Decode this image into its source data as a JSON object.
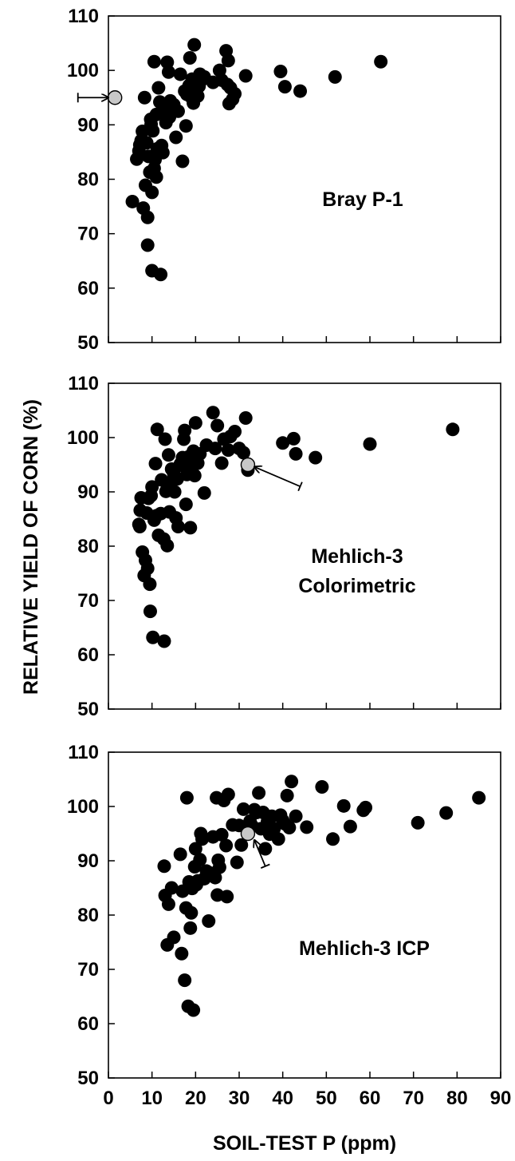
{
  "figure": {
    "ylabel": "RELATIVE YIELD OF CORN (%)",
    "xlabel": "SOIL-TEST P (ppm)"
  },
  "chart_data": [
    {
      "type": "scatter",
      "panel_label": [
        "Bray P-1"
      ],
      "xlim": [
        0,
        90
      ],
      "ylim": [
        50,
        110
      ],
      "yticks": [
        50,
        60,
        70,
        80,
        90,
        100,
        110
      ],
      "x_tick_labels_shown": false,
      "point_color": "#000000",
      "highlight_color": "#c8c8c8",
      "highlight": {
        "x": 1.5,
        "y": 95
      },
      "arrow": {
        "from": [
          -7,
          95
        ],
        "to": [
          0,
          95
        ]
      },
      "points": [
        [
          5.5,
          75.9
        ],
        [
          6.5,
          83.7
        ],
        [
          7,
          85.2
        ],
        [
          7.2,
          86.3
        ],
        [
          7.5,
          87.1
        ],
        [
          7.8,
          88.8
        ],
        [
          8,
          74.7
        ],
        [
          8.3,
          95
        ],
        [
          8.5,
          78.9
        ],
        [
          8.8,
          86.7
        ],
        [
          9,
          73
        ],
        [
          9,
          67.9
        ],
        [
          9.2,
          84.2
        ],
        [
          9.5,
          81.3
        ],
        [
          9.7,
          91
        ],
        [
          9.8,
          90.1
        ],
        [
          10,
          63.2
        ],
        [
          10,
          77.6
        ],
        [
          10.2,
          88.9
        ],
        [
          10.5,
          82
        ],
        [
          10.5,
          101.6
        ],
        [
          10.7,
          83.6
        ],
        [
          11,
          80.4
        ],
        [
          11,
          91.9
        ],
        [
          11.2,
          85.6
        ],
        [
          11.5,
          96.8
        ],
        [
          11.8,
          94.2
        ],
        [
          12,
          62.5
        ],
        [
          12.2,
          86.2
        ],
        [
          12.5,
          84.9
        ],
        [
          12.7,
          92.2
        ],
        [
          13,
          93.1
        ],
        [
          13.2,
          90.4
        ],
        [
          13.5,
          101.5
        ],
        [
          13.8,
          99.7
        ],
        [
          14,
          91.4
        ],
        [
          14.2,
          94.4
        ],
        [
          14.5,
          92.6
        ],
        [
          15,
          93.7
        ],
        [
          15.5,
          87.7
        ],
        [
          16,
          92.5
        ],
        [
          16.5,
          99.3
        ],
        [
          17,
          83.3
        ],
        [
          17.5,
          96.2
        ],
        [
          17.8,
          89.8
        ],
        [
          18,
          95.6
        ],
        [
          18.5,
          97.2
        ],
        [
          18.7,
          102.3
        ],
        [
          19,
          95.1
        ],
        [
          19.2,
          98.4
        ],
        [
          19.5,
          94
        ],
        [
          19.7,
          104.7
        ],
        [
          20,
          96.5
        ],
        [
          20.5,
          95.3
        ],
        [
          20.8,
          97.1
        ],
        [
          21,
          99.3
        ],
        [
          21.5,
          98.3
        ],
        [
          22,
          98.8
        ],
        [
          24,
          97.8
        ],
        [
          25.5,
          100
        ],
        [
          26,
          98.2
        ],
        [
          27,
          103.6
        ],
        [
          27.3,
          97.4
        ],
        [
          27.5,
          101.8
        ],
        [
          27.7,
          93.9
        ],
        [
          28,
          96.8
        ],
        [
          28.5,
          94.7
        ],
        [
          29,
          95.7
        ],
        [
          31.5,
          99
        ],
        [
          39.5,
          99.8
        ],
        [
          40.5,
          97
        ],
        [
          44,
          96.2
        ],
        [
          52,
          98.8
        ],
        [
          62.5,
          101.6
        ]
      ]
    },
    {
      "type": "scatter",
      "panel_label": [
        "Mehlich-3",
        "Colorimetric"
      ],
      "xlim": [
        0,
        90
      ],
      "ylim": [
        50,
        110
      ],
      "yticks": [
        50,
        60,
        70,
        80,
        90,
        100,
        110
      ],
      "x_tick_labels_shown": false,
      "point_color": "#000000",
      "highlight_color": "#c8c8c8",
      "highlight": {
        "x": 32,
        "y": 95
      },
      "arrow": {
        "from": [
          44,
          91
        ],
        "to": [
          33.5,
          94.6
        ]
      },
      "points": [
        [
          7,
          84
        ],
        [
          7.2,
          83.6
        ],
        [
          7.3,
          86.6
        ],
        [
          7.5,
          88.9
        ],
        [
          7.8,
          78.9
        ],
        [
          8.2,
          74.6
        ],
        [
          8.5,
          77.4
        ],
        [
          8.8,
          86.1
        ],
        [
          9,
          75.9
        ],
        [
          9.2,
          88.8
        ],
        [
          9.5,
          73
        ],
        [
          9.6,
          68
        ],
        [
          9.8,
          89.3
        ],
        [
          10,
          90.9
        ],
        [
          10.2,
          63.2
        ],
        [
          10.5,
          84.8
        ],
        [
          10.8,
          95.2
        ],
        [
          11,
          85.6
        ],
        [
          11.2,
          101.5
        ],
        [
          11.5,
          82
        ],
        [
          12,
          86
        ],
        [
          12.2,
          92.2
        ],
        [
          12.7,
          81.3
        ],
        [
          12.8,
          62.5
        ],
        [
          13,
          99.7
        ],
        [
          13.2,
          90.1
        ],
        [
          13.5,
          80.1
        ],
        [
          13.8,
          96.8
        ],
        [
          14,
          86.3
        ],
        [
          14.3,
          91.7
        ],
        [
          14.5,
          94.2
        ],
        [
          15,
          93.3
        ],
        [
          15.2,
          90
        ],
        [
          15.5,
          85.2
        ],
        [
          15.8,
          92.4
        ],
        [
          16,
          83.6
        ],
        [
          16.5,
          95.1
        ],
        [
          16.8,
          94.9
        ],
        [
          17,
          96.3
        ],
        [
          17.3,
          99.7
        ],
        [
          17.5,
          101.3
        ],
        [
          17.8,
          87.7
        ],
        [
          18,
          93.2
        ],
        [
          18.5,
          96.5
        ],
        [
          18.8,
          83.4
        ],
        [
          19,
          96.4
        ],
        [
          19.2,
          94.9
        ],
        [
          19.5,
          97.5
        ],
        [
          19.8,
          93
        ],
        [
          20,
          102.7
        ],
        [
          20.5,
          95.3
        ],
        [
          21,
          97
        ],
        [
          22,
          89.8
        ],
        [
          22.5,
          98.6
        ],
        [
          24,
          104.6
        ],
        [
          24.5,
          98
        ],
        [
          25,
          102.2
        ],
        [
          26,
          95.3
        ],
        [
          26.5,
          99.7
        ],
        [
          27.5,
          97.7
        ],
        [
          28,
          100.2
        ],
        [
          29,
          101.1
        ],
        [
          30,
          98
        ],
        [
          31,
          97.2
        ],
        [
          31.5,
          103.6
        ],
        [
          32,
          94
        ],
        [
          40,
          99
        ],
        [
          42.5,
          99.8
        ],
        [
          43,
          97
        ],
        [
          47.5,
          96.3
        ],
        [
          60,
          98.8
        ],
        [
          79,
          101.5
        ]
      ]
    },
    {
      "type": "scatter",
      "panel_label": [
        "Mehlich-3 ICP"
      ],
      "xlim": [
        0,
        90
      ],
      "ylim": [
        50,
        110
      ],
      "yticks": [
        50,
        60,
        70,
        80,
        90,
        100,
        110
      ],
      "xticks": [
        0,
        10,
        20,
        30,
        40,
        50,
        60,
        70,
        80,
        90
      ],
      "x_tick_labels_shown": true,
      "point_color": "#000000",
      "highlight_color": "#c8c8c8",
      "highlight": {
        "x": 32,
        "y": 95
      },
      "arrow": {
        "from": [
          36,
          89
        ],
        "to": [
          33.5,
          93.8
        ]
      },
      "points": [
        [
          12.8,
          89
        ],
        [
          13,
          83.6
        ],
        [
          13.5,
          74.5
        ],
        [
          13.8,
          82
        ],
        [
          14.5,
          85
        ],
        [
          15,
          75.9
        ],
        [
          16.5,
          91.2
        ],
        [
          16.8,
          72.9
        ],
        [
          17,
          84.4
        ],
        [
          17.5,
          68
        ],
        [
          17.8,
          81.3
        ],
        [
          18,
          101.6
        ],
        [
          18.3,
          63.2
        ],
        [
          18.5,
          86.1
        ],
        [
          18.8,
          77.6
        ],
        [
          19,
          80.4
        ],
        [
          19.2,
          84.9
        ],
        [
          19.5,
          62.5
        ],
        [
          19.8,
          88.9
        ],
        [
          20,
          92.2
        ],
        [
          20.2,
          85.6
        ],
        [
          20.5,
          86.3
        ],
        [
          21,
          90.2
        ],
        [
          21.2,
          95
        ],
        [
          21.5,
          94
        ],
        [
          22,
          86.7
        ],
        [
          22.5,
          88.1
        ],
        [
          23,
          78.9
        ],
        [
          23.5,
          87.7
        ],
        [
          24,
          94.4
        ],
        [
          24.5,
          86.9
        ],
        [
          24.8,
          101.6
        ],
        [
          25,
          83.7
        ],
        [
          25.2,
          90.1
        ],
        [
          25.5,
          88.8
        ],
        [
          26,
          94.8
        ],
        [
          26.5,
          101.1
        ],
        [
          27,
          92.8
        ],
        [
          27.2,
          83.4
        ],
        [
          27.5,
          102.2
        ],
        [
          28.5,
          96.6
        ],
        [
          29.5,
          89.7
        ],
        [
          30,
          96.5
        ],
        [
          30.5,
          92.9
        ],
        [
          31,
          99.5
        ],
        [
          32.5,
          97.3
        ],
        [
          33,
          96.4
        ],
        [
          33.5,
          99.4
        ],
        [
          34,
          98.9
        ],
        [
          34.5,
          102.5
        ],
        [
          35,
          95.9
        ],
        [
          35.5,
          98.9
        ],
        [
          36,
          92.2
        ],
        [
          36.5,
          97.2
        ],
        [
          37,
          94.9
        ],
        [
          37.5,
          98.2
        ],
        [
          38,
          95.9
        ],
        [
          39,
          94
        ],
        [
          39.5,
          98.4
        ],
        [
          40,
          97.4
        ],
        [
          40.5,
          96.8
        ],
        [
          41,
          102
        ],
        [
          41.5,
          96.1
        ],
        [
          42,
          104.6
        ],
        [
          43,
          98.2
        ],
        [
          45.5,
          96.2
        ],
        [
          49,
          103.6
        ],
        [
          51.5,
          94
        ],
        [
          54,
          100.1
        ],
        [
          55.5,
          96.3
        ],
        [
          58.5,
          99.3
        ],
        [
          59,
          99.8
        ],
        [
          71,
          97
        ],
        [
          77.5,
          98.8
        ],
        [
          85,
          101.6
        ]
      ]
    }
  ]
}
